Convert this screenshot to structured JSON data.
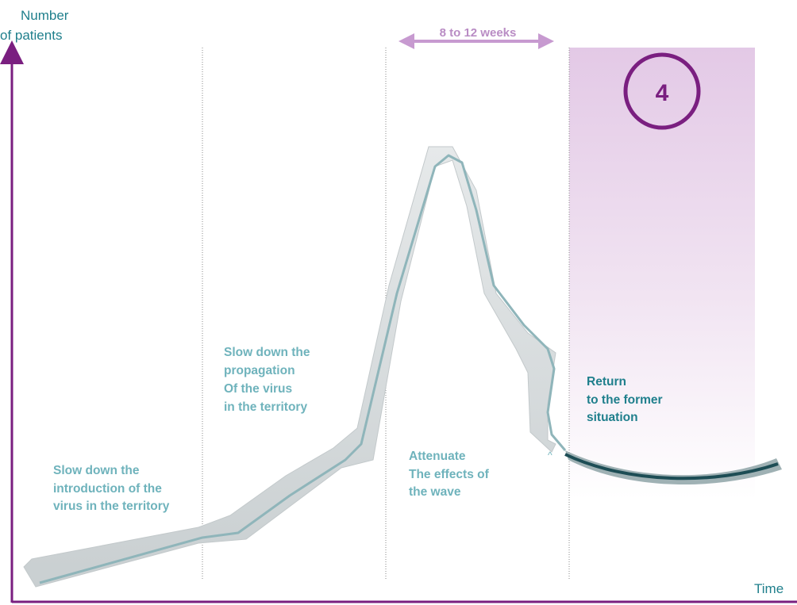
{
  "axes": {
    "y_label_line1": "Number",
    "y_label_line2": "of patients",
    "x_label": "Time"
  },
  "duration": {
    "label": "8 to 12 weeks"
  },
  "active_phase": {
    "number": "4",
    "lines": [
      "Return",
      "to the former",
      "situation"
    ]
  },
  "phases": [
    {
      "lines": [
        "Slow down the",
        "introduction of the",
        "virus in the territory"
      ]
    },
    {
      "lines": [
        "Slow down the",
        "propagation",
        "Of the virus",
        "in the territory"
      ]
    },
    {
      "lines": [
        "Attenuate",
        "The effects of",
        "the wave"
      ]
    }
  ],
  "colors": {
    "axis": "#7a1f80",
    "highlight": "#e8d3eb",
    "ribbon": "#d4d9da",
    "curve_line": "#8fb5ba",
    "active_curve": "#1d4d55",
    "phase_text": "#6fb3bc",
    "active_text": "#1f7f8c",
    "arrow": "#c79ad0"
  }
}
